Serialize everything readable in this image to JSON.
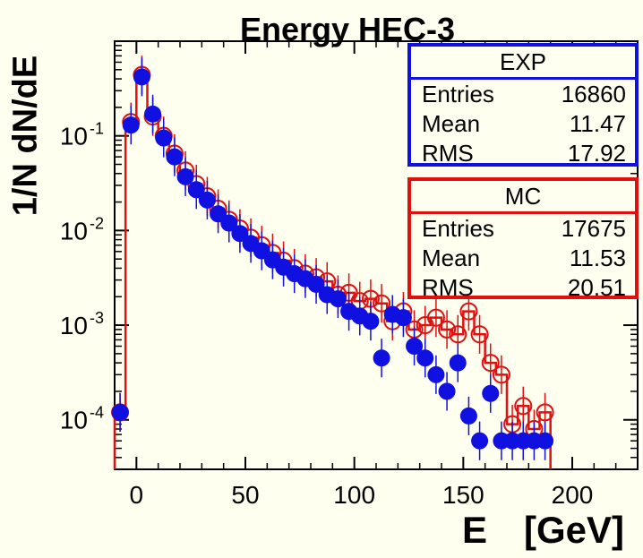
{
  "chart_data": {
    "type": "scatter",
    "title": "Energy HEC-3",
    "xlabel": "E",
    "xunit": "[GeV]",
    "ylabel": "1/N dN/dE",
    "xlim": [
      -10,
      230
    ],
    "ylim": [
      3e-05,
      1.0
    ],
    "yscale": "log",
    "grid": false,
    "x_ticks": [
      "0",
      "50",
      "100",
      "150",
      "200"
    ],
    "y_ticks": [
      {
        "label": "10",
        "exp": "-1",
        "value": 0.1
      },
      {
        "label": "10",
        "exp": "-2",
        "value": 0.01
      },
      {
        "label": "10",
        "exp": "-3",
        "value": 0.001
      },
      {
        "label": "10",
        "exp": "-4",
        "value": 0.0001
      }
    ],
    "series": [
      {
        "name": "EXP",
        "color": "#1010e0",
        "marker": "filled-circle",
        "x": [
          -7.5,
          -2.5,
          2.5,
          7.5,
          12.5,
          17.5,
          22.5,
          27.5,
          32.5,
          37.5,
          42.5,
          47.5,
          52.5,
          57.5,
          62.5,
          67.5,
          72.5,
          77.5,
          82.5,
          87.5,
          92.5,
          97.5,
          102.5,
          107.5,
          112.5,
          117.5,
          122.5,
          127.5,
          132.5,
          137.5,
          142.5,
          147.5,
          152.5,
          157.5,
          162.5,
          167.5,
          172.5,
          177.5,
          182.5,
          187.5
        ],
        "y": [
          0.00012,
          0.13,
          0.42,
          0.17,
          0.095,
          0.06,
          0.037,
          0.027,
          0.021,
          0.015,
          0.012,
          0.0093,
          0.0073,
          0.0061,
          0.0049,
          0.0041,
          0.0035,
          0.0031,
          0.0027,
          0.0021,
          0.0019,
          0.0014,
          0.00125,
          0.0011,
          0.00045,
          0.0013,
          0.0012,
          0.0006,
          0.00045,
          0.0003,
          0.0002,
          0.0004,
          0.00011,
          6e-05,
          0.00019,
          6e-05,
          6e-05,
          6e-05,
          6e-05,
          6e-05
        ]
      },
      {
        "name": "MC",
        "color": "#e01010",
        "marker": "open-circle",
        "x": [
          -7.5,
          -2.5,
          2.5,
          7.5,
          12.5,
          17.5,
          22.5,
          27.5,
          32.5,
          37.5,
          42.5,
          47.5,
          52.5,
          57.5,
          62.5,
          67.5,
          72.5,
          77.5,
          82.5,
          87.5,
          92.5,
          97.5,
          102.5,
          107.5,
          112.5,
          117.5,
          122.5,
          127.5,
          132.5,
          137.5,
          142.5,
          147.5,
          152.5,
          157.5,
          162.5,
          167.5,
          172.5,
          177.5,
          182.5,
          187.5
        ],
        "y": [
          0.00012,
          0.14,
          0.44,
          0.16,
          0.1,
          0.065,
          0.043,
          0.031,
          0.023,
          0.017,
          0.013,
          0.0105,
          0.0084,
          0.007,
          0.0058,
          0.0048,
          0.004,
          0.0035,
          0.0032,
          0.0029,
          0.0021,
          0.0022,
          0.0018,
          0.0019,
          0.0017,
          0.0011,
          0.0014,
          0.0009,
          0.001,
          0.0012,
          0.0009,
          0.0008,
          0.0014,
          0.0008,
          0.0004,
          0.0003,
          9e-05,
          0.00014,
          8e-05,
          0.00012
        ]
      }
    ],
    "stats": [
      {
        "name": "EXP",
        "color": "#1010e0",
        "rows": [
          [
            "Entries",
            "16860"
          ],
          [
            "Mean",
            "11.47"
          ],
          [
            "RMS",
            "17.92"
          ]
        ]
      },
      {
        "name": "MC",
        "color": "#e01010",
        "rows": [
          [
            "Entries",
            "17675"
          ],
          [
            "Mean",
            "11.53"
          ],
          [
            "RMS",
            "20.51"
          ]
        ]
      }
    ]
  }
}
